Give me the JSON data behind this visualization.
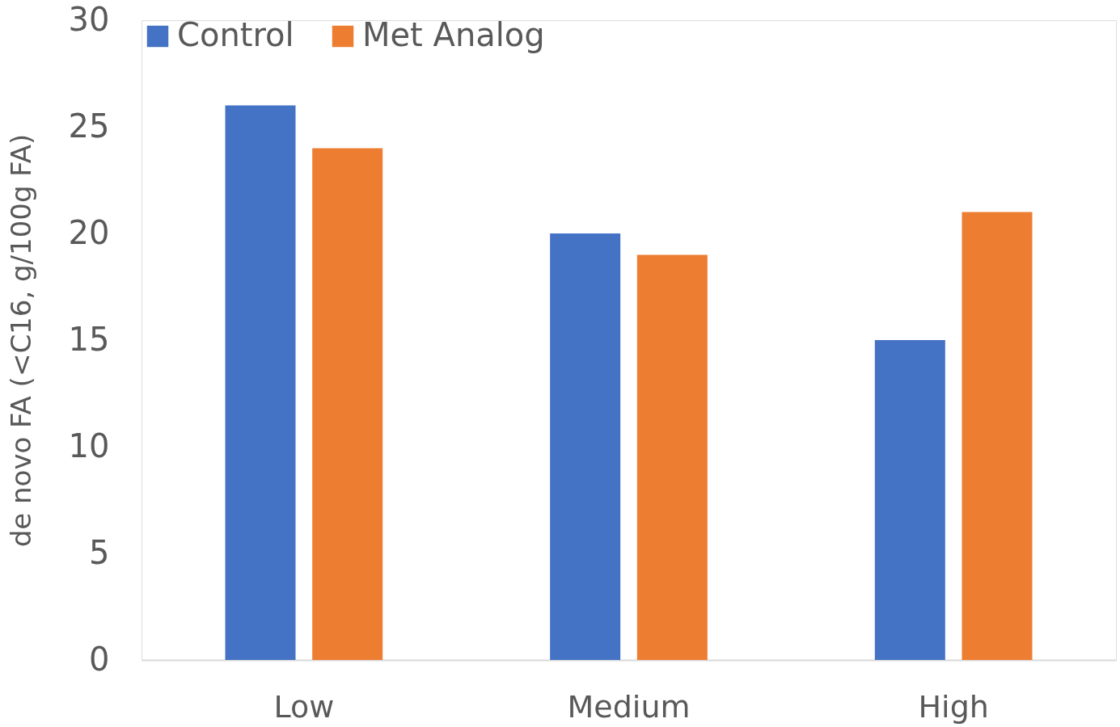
{
  "chart_data": {
    "type": "bar",
    "ylabel": "de novo FA (<C16, g/100g FA)",
    "categories": [
      "Low",
      "Medium",
      "High"
    ],
    "series": [
      {
        "name": "Control",
        "color": "#4472c4",
        "values": [
          26,
          20,
          15
        ]
      },
      {
        "name": "Met Analog",
        "color": "#ed7d31",
        "values": [
          24,
          19,
          21
        ]
      }
    ],
    "ylim": [
      0,
      30
    ],
    "yticks": [
      0,
      5,
      10,
      15,
      20,
      25,
      30
    ],
    "grid": false,
    "legend": "top"
  }
}
